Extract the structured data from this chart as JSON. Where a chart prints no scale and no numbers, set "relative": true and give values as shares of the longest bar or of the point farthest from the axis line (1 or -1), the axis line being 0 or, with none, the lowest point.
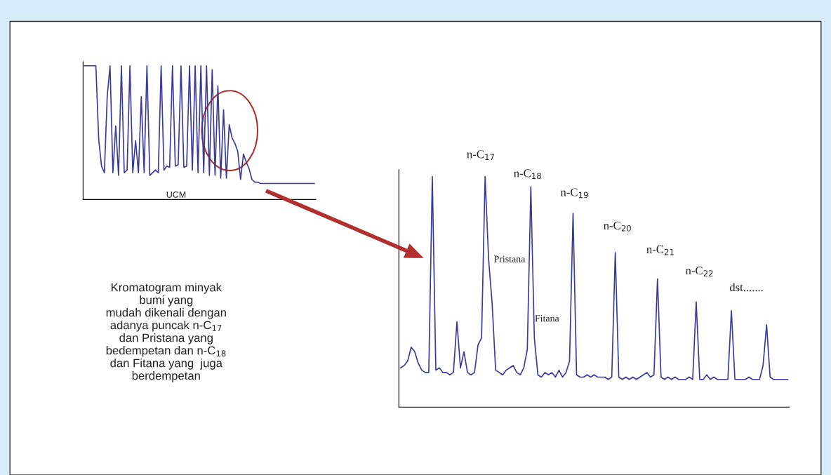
{
  "chart_data": [
    {
      "type": "line",
      "relative": true,
      "color": "#3a3a9a",
      "categories": [
        null,
        null,
        null,
        null,
        null,
        null,
        null,
        null,
        null,
        null,
        null,
        null,
        null,
        null,
        null,
        null,
        null,
        null,
        null,
        null,
        null,
        null,
        null,
        null,
        null,
        null,
        null,
        null,
        null,
        null,
        null,
        null,
        null,
        null,
        null,
        null,
        null,
        null,
        null,
        null,
        null,
        null,
        null,
        null,
        null,
        null,
        null,
        null,
        null,
        null,
        null,
        null,
        null,
        null,
        null,
        null,
        null,
        null,
        null,
        null,
        null,
        null,
        null,
        null,
        null,
        null,
        null,
        null,
        null,
        null,
        null,
        null,
        null,
        null,
        null,
        null,
        null,
        null,
        null,
        null,
        null,
        null
      ],
      "values": [
        1,
        1,
        1,
        1,
        1,
        0.45,
        0.25,
        0.2,
        0.773,
        1,
        0.2,
        0.55,
        0.18,
        1,
        0.2,
        0.22,
        1,
        0.2,
        0.44,
        0.2,
        0.77,
        0.2,
        1,
        0.18,
        0.2,
        0.22,
        0.2,
        1,
        0.22,
        0.25,
        0.24,
        1,
        0.25,
        0.26,
        1,
        0.24,
        0.25,
        1,
        0.22,
        1,
        0.2,
        1,
        0.2,
        1,
        0.18,
        0.97,
        0.18,
        0.85,
        0.16,
        0.67,
        0.16,
        0.56,
        0.46,
        0.42,
        0.36,
        0.15,
        0.34,
        0.28,
        0.23,
        0.15,
        0.13,
        0.13,
        0.12,
        0.12,
        0.12,
        0.12,
        0.12,
        0.12,
        0.12,
        0.12,
        0.12,
        0.12,
        0.12,
        0.12,
        0.12,
        0.12,
        0.12,
        0.12,
        0.12,
        0.12,
        0.12,
        0.12
      ],
      "annotations": [
        "UCM",
        "Kromatogram minyak\nbumi yang\nmudah dikenali dengan\nadanya puncak n-C$_{17}$\ndan Pristana yang\nbedempetan dan n-C$_{18}$\ndan Fitana yang  juga\nberdempetan"
      ]
    },
    {
      "type": "line",
      "relative": true,
      "color": "#3a3a9a",
      "categories": [
        null,
        null,
        null,
        null,
        null,
        null,
        null,
        null,
        null,
        null,
        null,
        null,
        null,
        null,
        null,
        null,
        null,
        null,
        null,
        null,
        null,
        null,
        null,
        null,
        null,
        null,
        null,
        null,
        null,
        null,
        null,
        null,
        null,
        null,
        null,
        null,
        null,
        null,
        null,
        null,
        null,
        null,
        null,
        null,
        null,
        null,
        null,
        null,
        null,
        null,
        null,
        null,
        null,
        null,
        null,
        null,
        null,
        null,
        null,
        null,
        null,
        null,
        null,
        null,
        null,
        null,
        null,
        null,
        null,
        null,
        null,
        null,
        null,
        null,
        null,
        null,
        null,
        null,
        null,
        null,
        null,
        null,
        null,
        null,
        null,
        null,
        null,
        null,
        null,
        null,
        null,
        null,
        null,
        null,
        null,
        null,
        null,
        null,
        null,
        null,
        null,
        null,
        null,
        null,
        null,
        null,
        null,
        null,
        null,
        null,
        null
      ],
      "values": [
        0.17,
        0.18,
        0.2,
        0.26,
        0.24,
        0.19,
        0.16,
        0.15,
        0.15,
        1.0,
        0.16,
        0.17,
        0.15,
        0.15,
        0.14,
        0.15,
        0.37,
        0.17,
        0.24,
        0.15,
        0.14,
        0.15,
        0.27,
        0.3,
        1.0,
        0.64,
        0.45,
        0.16,
        0.15,
        0.14,
        0.16,
        0.17,
        0.18,
        0.15,
        0.14,
        0.17,
        0.25,
        0.955,
        0.3,
        0.14,
        0.13,
        0.15,
        0.14,
        0.15,
        0.13,
        0.16,
        0.13,
        0.15,
        0.2,
        0.84,
        0.14,
        0.13,
        0.13,
        0.14,
        0.13,
        0.14,
        0.13,
        0.13,
        0.13,
        0.12,
        0.13,
        0.67,
        0.13,
        0.12,
        0.13,
        0.12,
        0.13,
        0.12,
        0.13,
        0.14,
        0.15,
        0.13,
        0.14,
        0.556,
        0.13,
        0.12,
        0.13,
        0.12,
        0.13,
        0.12,
        0.12,
        0.12,
        0.13,
        0.12,
        0.456,
        0.12,
        0.12,
        0.14,
        0.12,
        0.13,
        0.12,
        0.12,
        0.12,
        0.12,
        0.418,
        0.12,
        0.12,
        0.12,
        0.12,
        0.13,
        0.12,
        0.12,
        0.12,
        0.18,
        0.357,
        0.13,
        0.12,
        0.12,
        0.12,
        0.12,
        0.12
      ],
      "annotations": [
        "n-C$_{17}$",
        "n-C$_{18}$",
        "n-C$_{19}$",
        "n-C$_{20}$",
        "n-C$_{21}$",
        "n-C$_{22}$",
        "dst.......",
        "Pristana",
        "Fitana"
      ]
    }
  ]
}
